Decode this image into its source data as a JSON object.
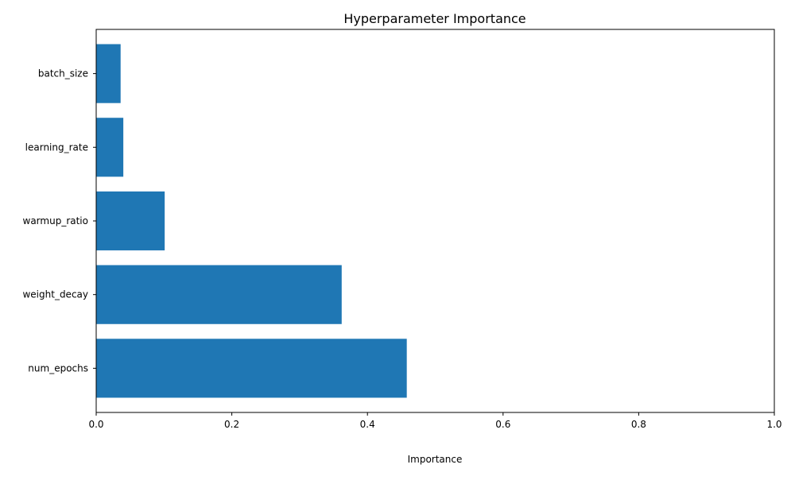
{
  "chart_data": {
    "type": "bar",
    "orientation": "horizontal",
    "title": "Hyperparameter Importance",
    "xlabel": "Importance",
    "ylabel": "",
    "categories": [
      "num_epochs",
      "weight_decay",
      "warmup_ratio",
      "learning_rate",
      "batch_size"
    ],
    "values": [
      0.458,
      0.362,
      0.101,
      0.04,
      0.036
    ],
    "xlim": [
      0,
      1.0
    ],
    "xticks": [
      "0.0",
      "0.2",
      "0.4",
      "0.6",
      "0.8",
      "1.0"
    ],
    "grid": false,
    "bar_color": "#1f77b4"
  }
}
